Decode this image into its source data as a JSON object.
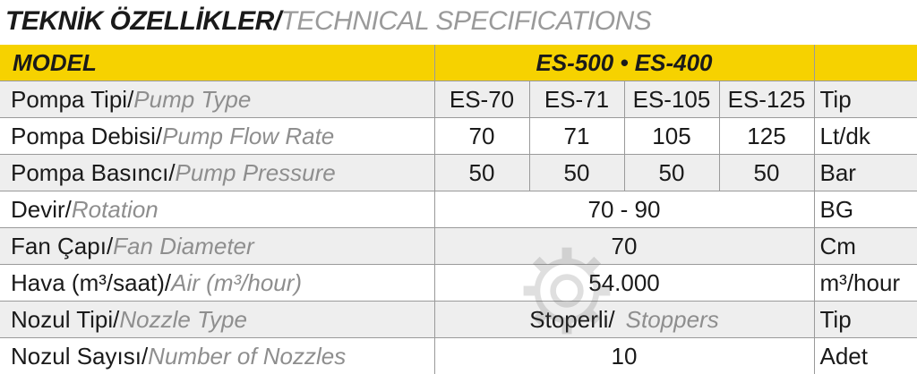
{
  "title": {
    "tr": "TEKNİK ÖZELLİKLER/",
    "en": "TECHNICAL SPECIFICATIONS"
  },
  "header": {
    "model_label": "MODEL",
    "model_value": "ES-500 • ES-400",
    "unit": ""
  },
  "rows": [
    {
      "label_tr": "Pompa Tipi/",
      "label_en": "Pump Type",
      "values": [
        "ES-70",
        "ES-71",
        "ES-105",
        "ES-125"
      ],
      "unit": "Tip"
    },
    {
      "label_tr": "Pompa Debisi/",
      "label_en": "Pump Flow Rate",
      "values": [
        "70",
        "71",
        "105",
        "125"
      ],
      "unit": "Lt/dk"
    },
    {
      "label_tr": "Pompa Basıncı/",
      "label_en": "Pump Pressure",
      "values": [
        "50",
        "50",
        "50",
        "50"
      ],
      "unit": "Bar"
    },
    {
      "label_tr": "Devir/",
      "label_en": "Rotation",
      "value": "70 - 90",
      "unit": "BG"
    },
    {
      "label_tr": "Fan Çapı/",
      "label_en": "Fan Diameter",
      "value": "70",
      "unit": "Cm"
    },
    {
      "label_tr": "Hava (m³/saat)/",
      "label_en": "Air (m³/hour)",
      "value": "54.000",
      "unit": "m³/hour"
    },
    {
      "label_tr": "Nozul Tipi/",
      "label_en": "Nozzle Type",
      "value_tr": "Stoperli/",
      "value_en": "Stoppers",
      "unit": "Tip"
    },
    {
      "label_tr": "Nozul Sayısı/",
      "label_en": "Number of Nozzles",
      "value": "10",
      "unit": "Adet"
    }
  ],
  "colors": {
    "header_bg": "#f6d200",
    "row_alt_bg": "#eeeeee",
    "english_text": "#8e8e8e"
  }
}
